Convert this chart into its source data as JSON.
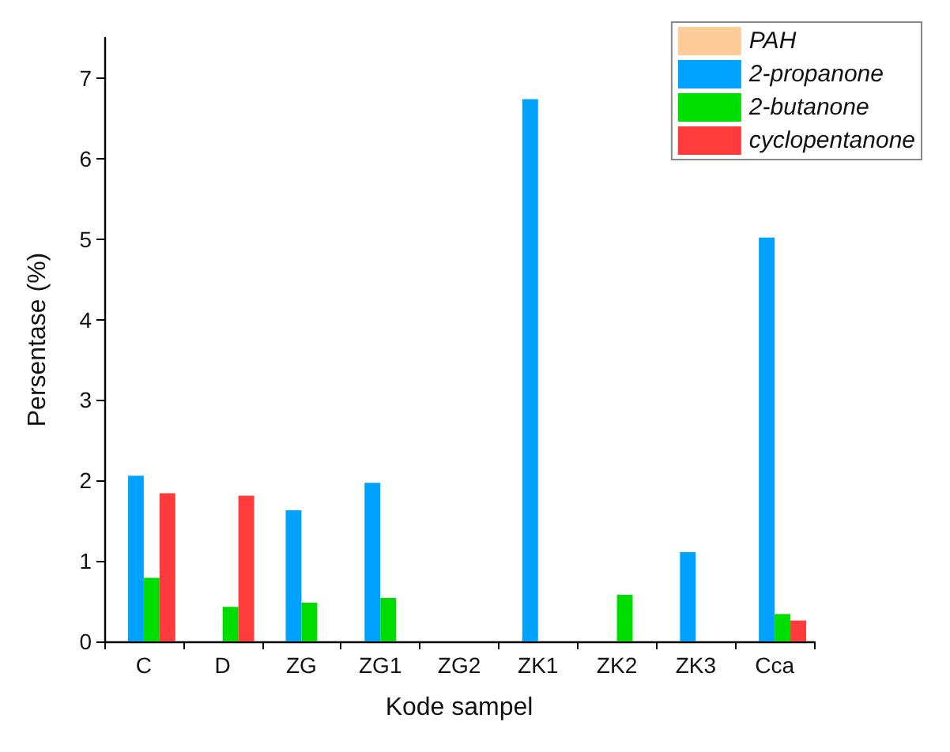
{
  "chart_data": {
    "type": "bar",
    "xlabel": "Kode sampel",
    "ylabel": "Persentase (%)",
    "categories": [
      "C",
      "D",
      "ZG",
      "ZG1",
      "ZG2",
      "ZK1",
      "ZK2",
      "ZK3",
      "Cca"
    ],
    "series": [
      {
        "name": "PAH",
        "color": "#ffcc99",
        "values": [
          0,
          0,
          0,
          0,
          0,
          0,
          0,
          0,
          0
        ]
      },
      {
        "name": "2-propanone",
        "color": "#00a2ff",
        "values": [
          2.06,
          0,
          1.63,
          1.97,
          0,
          6.74,
          0,
          1.11,
          5.02
        ]
      },
      {
        "name": "2-butanone",
        "color": "#00dd00",
        "values": [
          0.79,
          0.43,
          0.48,
          0.54,
          0,
          0,
          0.58,
          0,
          0.34
        ]
      },
      {
        "name": "cyclopentanone",
        "color": "#ff3b3b",
        "values": [
          1.84,
          1.81,
          0,
          0,
          0,
          0,
          0,
          0,
          0.26
        ]
      }
    ],
    "ylim": [
      0,
      7.5
    ],
    "yticks": [
      0,
      1,
      2,
      3,
      4,
      5,
      6,
      7
    ],
    "grid": false,
    "legend": "top right"
  }
}
